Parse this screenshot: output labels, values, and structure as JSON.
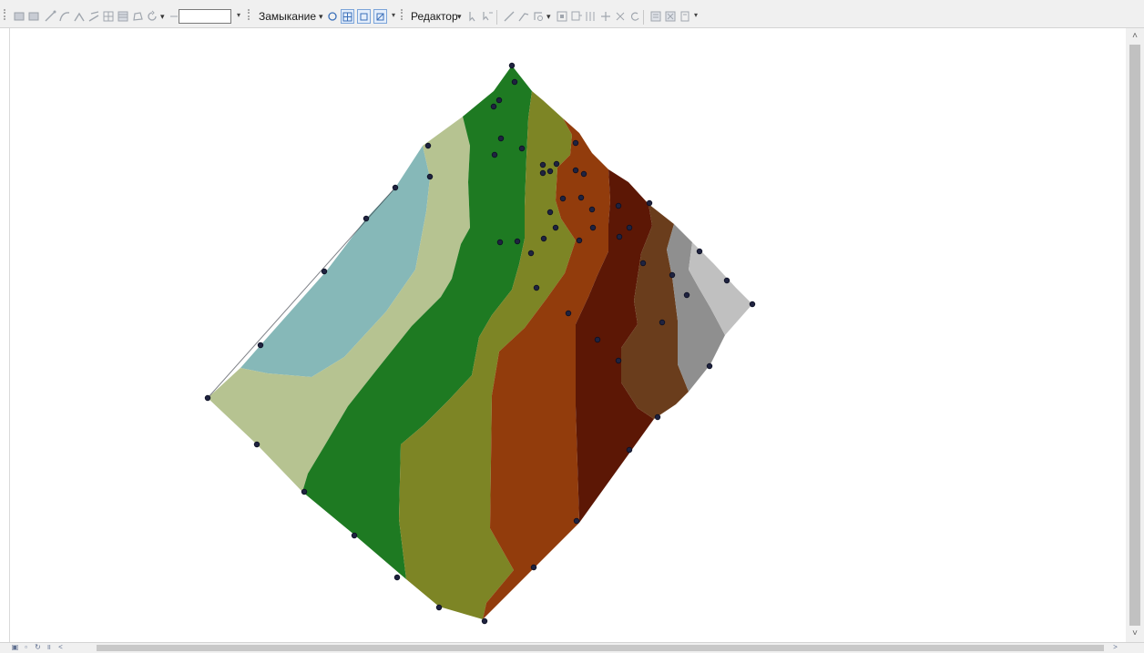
{
  "toolbar": {
    "scale_value": "",
    "snapping_label": "Замыкание",
    "editor_label": "Редактор",
    "dropdown_glyph": "▾",
    "more_glyph": "▾"
  },
  "scrollbar": {
    "up_glyph": "˄",
    "down_glyph": "˅",
    "left_glyph": "<",
    "right_glyph": ">"
  },
  "colors": {
    "background": "#ffffff",
    "well_point": "#1f2340",
    "zone_1": "#86b8b8",
    "zone_2": "#b6c391",
    "zone_3": "#1e7a22",
    "zone_4": "#7d8525",
    "zone_5": "#923c0c",
    "zone_6": "#5c1705",
    "zone_7": "#6a3d1c",
    "zone_8": "#8f8f8f",
    "zone_9": "#c0c0c0"
  },
  "map": {
    "well_point_count": 58
  }
}
